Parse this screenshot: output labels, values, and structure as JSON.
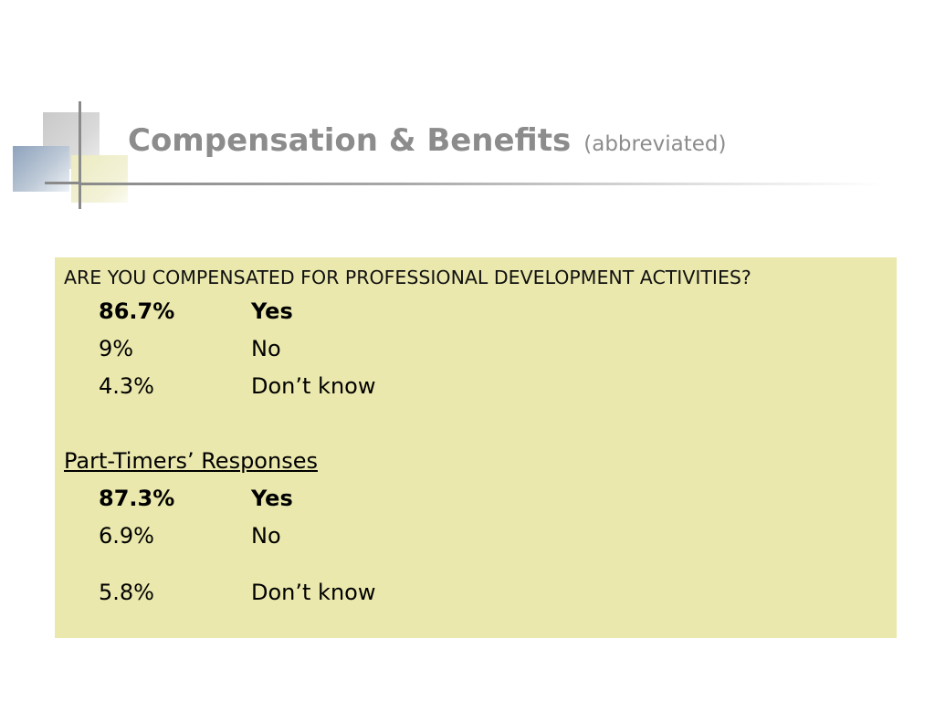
{
  "slide": {
    "title": "Compensation & Benefits",
    "subtitle": "(abbreviated)"
  },
  "panel": {
    "question": "ARE YOU COMPENSATED FOR PROFESSIONAL DEVELOPMENT ACTIVITIES?",
    "all_responses": [
      {
        "percent": "86.7%",
        "answer": "Yes",
        "bold": true
      },
      {
        "percent": "9%",
        "answer": "No",
        "bold": false
      },
      {
        "percent": "4.3%",
        "answer": "Don’t know",
        "bold": false
      }
    ],
    "part_timers_heading": "Part-Timers’ Responses",
    "part_timers_responses": [
      {
        "percent": "87.3%",
        "answer": "Yes",
        "bold": true
      },
      {
        "percent": "6.9%",
        "answer": "No",
        "bold": false
      },
      {
        "percent": "5.8%",
        "answer": "Don’t know",
        "bold": false
      }
    ]
  },
  "colors": {
    "panel_background": "#eae8ac",
    "title_gray": "#8c8c8c"
  }
}
